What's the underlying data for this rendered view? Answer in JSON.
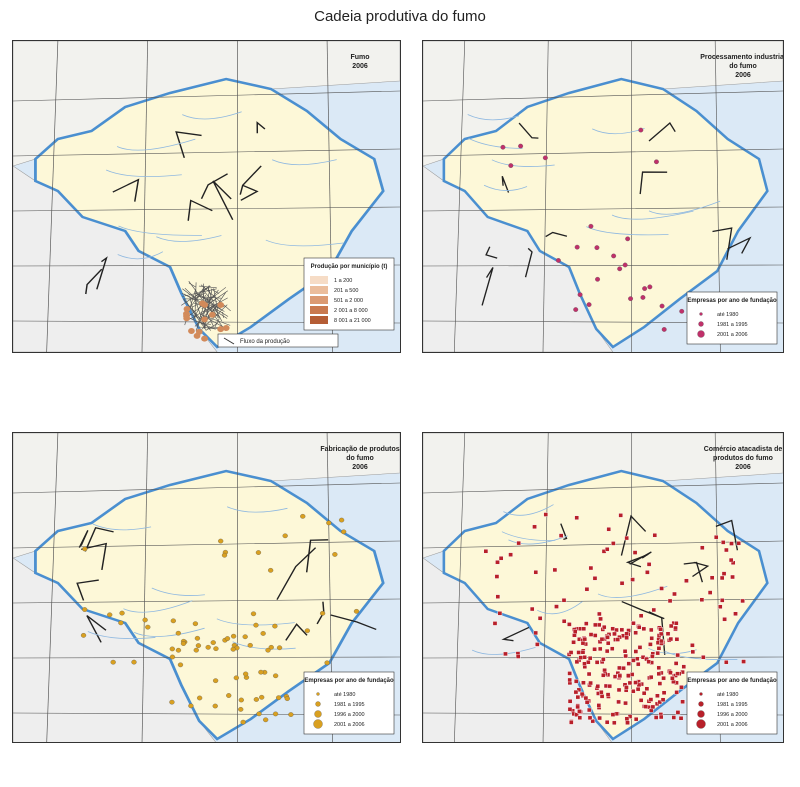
{
  "title": "Cadeia produtiva do fumo",
  "panels": [
    {
      "title": [
        "Fumo",
        "2006"
      ],
      "legend": {
        "title": "Produção por município (t)",
        "items": [
          "1 a 200",
          "201 a 500",
          "501 a 2 000",
          "2 001 a 8 000",
          "8 001 a 21 000"
        ]
      },
      "note": "Fluxo da produção"
    },
    {
      "title": [
        "Processamento industrial",
        "do fumo",
        "2006"
      ],
      "legend": {
        "title": "Empresas por ano de fundação",
        "items": [
          "até 1980",
          "1981 a 1995",
          "2001 a 2006"
        ]
      }
    },
    {
      "title": [
        "Fabricação de produtos",
        "do fumo",
        "2006"
      ],
      "legend": {
        "title": "Empresas por ano de fundação",
        "items": [
          "até 1980",
          "1981 a 1995",
          "1996 a 2000",
          "2001 a 2006"
        ]
      }
    },
    {
      "title": [
        "Comércio atacadista de",
        "produtos do fumo",
        "2006"
      ],
      "legend": {
        "title": "Empresas por ano de fundação",
        "items": [
          "até 1980",
          "1981 a 1995",
          "1996 a 2000",
          "2001 a 2006"
        ]
      }
    }
  ]
}
